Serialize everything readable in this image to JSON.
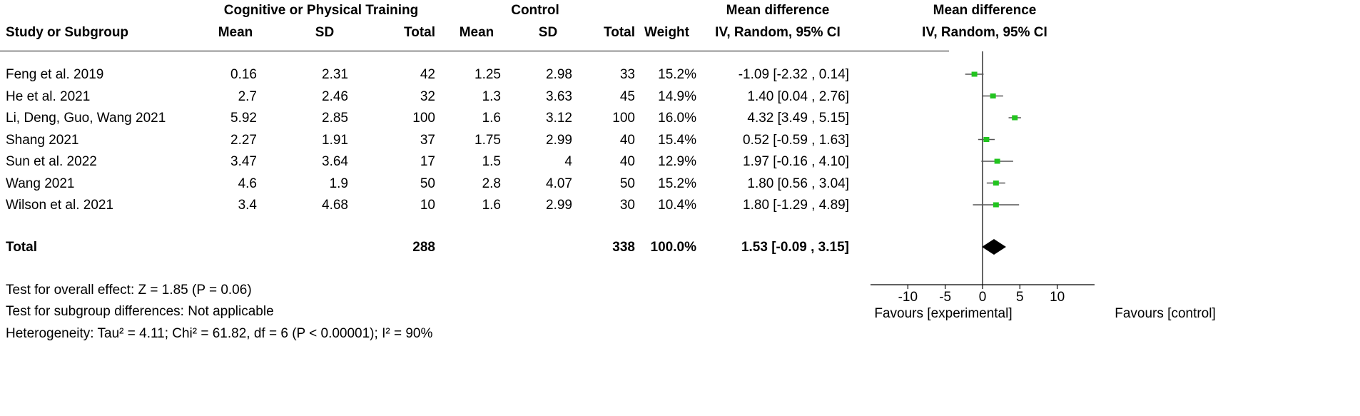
{
  "headers": {
    "group_experimental": "Cognitive or Physical Training",
    "group_control": "Control",
    "col_md_top": "Mean difference",
    "col_md_bottom": "IV, Random, 95% CI",
    "plot_md_top": "Mean difference",
    "plot_md_bottom": "IV, Random, 95% CI",
    "study": "Study or Subgroup",
    "exp_mean": "Mean",
    "exp_sd": "SD",
    "exp_total": "Total",
    "ctl_mean": "Mean",
    "ctl_sd": "SD",
    "ctl_total": "Total",
    "weight": "Weight"
  },
  "studies": [
    {
      "name": "Feng et al. 2019",
      "exp_mean": "0.16",
      "exp_sd": "2.31",
      "exp_total": "42",
      "ctl_mean": "1.25",
      "ctl_sd": "2.98",
      "ctl_total": "33",
      "weight": "15.2%",
      "ci": "-1.09 [-2.32 , 0.14]"
    },
    {
      "name": "He et al. 2021",
      "exp_mean": "2.7",
      "exp_sd": "2.46",
      "exp_total": "32",
      "ctl_mean": "1.3",
      "ctl_sd": "3.63",
      "ctl_total": "45",
      "weight": "14.9%",
      "ci": "1.40 [0.04 , 2.76]"
    },
    {
      "name": "Li, Deng, Guo, Wang 2021",
      "exp_mean": "5.92",
      "exp_sd": "2.85",
      "exp_total": "100",
      "ctl_mean": "1.6",
      "ctl_sd": "3.12",
      "ctl_total": "100",
      "weight": "16.0%",
      "ci": "4.32 [3.49 , 5.15]"
    },
    {
      "name": "Shang 2021",
      "exp_mean": "2.27",
      "exp_sd": "1.91",
      "exp_total": "37",
      "ctl_mean": "1.75",
      "ctl_sd": "2.99",
      "ctl_total": "40",
      "weight": "15.4%",
      "ci": "0.52 [-0.59 , 1.63]"
    },
    {
      "name": "Sun et al. 2022",
      "exp_mean": "3.47",
      "exp_sd": "3.64",
      "exp_total": "17",
      "ctl_mean": "1.5",
      "ctl_sd": "4",
      "ctl_total": "40",
      "weight": "12.9%",
      "ci": "1.97 [-0.16 , 4.10]"
    },
    {
      "name": "Wang 2021",
      "exp_mean": "4.6",
      "exp_sd": "1.9",
      "exp_total": "50",
      "ctl_mean": "2.8",
      "ctl_sd": "4.07",
      "ctl_total": "50",
      "weight": "15.2%",
      "ci": "1.80 [0.56 , 3.04]"
    },
    {
      "name": "Wilson et al. 2021",
      "exp_mean": "3.4",
      "exp_sd": "4.68",
      "exp_total": "10",
      "ctl_mean": "1.6",
      "ctl_sd": "2.99",
      "ctl_total": "30",
      "weight": "10.4%",
      "ci": "1.80 [-1.29 , 4.89]"
    }
  ],
  "total": {
    "label": "Total",
    "exp_total": "288",
    "ctl_total": "338",
    "weight": "100.0%",
    "ci": "1.53 [-0.09 , 3.15]"
  },
  "footer": {
    "overall_effect": "Test for overall effect: Z = 1.85 (P = 0.06)",
    "subgroup": "Test for subgroup differences: Not applicable",
    "heterogeneity": "Heterogeneity: Tau² = 4.11; Chi² = 61.82, df = 6 (P < 0.00001); I² = 90%"
  },
  "chart_data": {
    "type": "scatter",
    "subtype": "forest",
    "categories": [
      "Feng et al. 2019",
      "He et al. 2021",
      "Li, Deng, Guo, Wang 2021",
      "Shang 2021",
      "Sun et al. 2022",
      "Wang 2021",
      "Wilson et al. 2021"
    ],
    "estimates": [
      -1.09,
      1.4,
      4.32,
      0.52,
      1.97,
      1.8,
      1.8
    ],
    "lower": [
      -2.32,
      0.04,
      3.49,
      -0.59,
      -0.16,
      0.56,
      -1.29
    ],
    "upper": [
      0.14,
      2.76,
      5.15,
      1.63,
      4.1,
      3.04,
      4.89
    ],
    "pooled": {
      "estimate": 1.53,
      "lower": -0.09,
      "upper": 3.15
    },
    "xlim": [
      -15,
      15
    ],
    "xticks": [
      -10,
      -5,
      0,
      5,
      10
    ],
    "x_left_label": "Favours [experimental]",
    "x_right_label": "Favours [control]",
    "marker_color": "#22c41f",
    "line_color": "#555555",
    "diamond_color": "#000000"
  }
}
